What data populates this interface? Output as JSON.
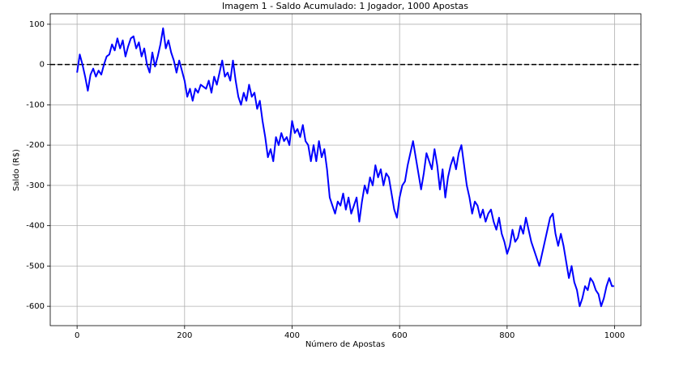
{
  "chart_data": {
    "type": "line",
    "title": "Imagem 1 - Saldo Acumulado: 1 Jogador, 1000 Apostas",
    "x_label": "Número de Apostas",
    "y_label": "Saldo (R$)",
    "x": [
      0,
      5,
      10,
      15,
      20,
      25,
      30,
      35,
      40,
      45,
      50,
      55,
      60,
      65,
      70,
      75,
      80,
      85,
      90,
      95,
      100,
      105,
      110,
      115,
      120,
      125,
      130,
      135,
      140,
      145,
      150,
      155,
      160,
      165,
      170,
      175,
      180,
      185,
      190,
      195,
      200,
      205,
      210,
      215,
      220,
      225,
      230,
      235,
      240,
      245,
      250,
      255,
      260,
      265,
      270,
      275,
      280,
      285,
      290,
      295,
      300,
      305,
      310,
      315,
      320,
      325,
      330,
      335,
      340,
      345,
      350,
      355,
      360,
      365,
      370,
      375,
      380,
      385,
      390,
      395,
      400,
      405,
      410,
      415,
      420,
      425,
      430,
      435,
      440,
      445,
      450,
      455,
      460,
      465,
      470,
      475,
      480,
      485,
      490,
      495,
      500,
      505,
      510,
      515,
      520,
      525,
      530,
      535,
      540,
      545,
      550,
      555,
      560,
      565,
      570,
      575,
      580,
      585,
      590,
      595,
      600,
      605,
      610,
      615,
      620,
      625,
      630,
      635,
      640,
      645,
      650,
      655,
      660,
      665,
      670,
      675,
      680,
      685,
      690,
      695,
      700,
      705,
      710,
      715,
      720,
      725,
      730,
      735,
      740,
      745,
      750,
      755,
      760,
      765,
      770,
      775,
      780,
      785,
      790,
      795,
      800,
      805,
      810,
      815,
      820,
      825,
      830,
      835,
      840,
      845,
      850,
      855,
      860,
      865,
      870,
      875,
      880,
      885,
      890,
      895,
      900,
      905,
      910,
      915,
      920,
      925,
      930,
      935,
      940,
      945,
      950,
      955,
      960,
      965,
      970,
      975,
      980,
      985,
      990,
      995,
      999
    ],
    "series": [
      {
        "color": "#0000ff",
        "values": [
          -20,
          25,
          0,
          -30,
          -65,
          -25,
          -10,
          -30,
          -15,
          -25,
          0,
          20,
          25,
          50,
          35,
          65,
          40,
          60,
          20,
          45,
          65,
          70,
          40,
          55,
          20,
          40,
          0,
          -20,
          30,
          -5,
          20,
          50,
          90,
          40,
          60,
          30,
          10,
          -20,
          10,
          -15,
          -40,
          -80,
          -60,
          -90,
          -60,
          -70,
          -50,
          -55,
          -60,
          -40,
          -70,
          -30,
          -50,
          -20,
          10,
          -30,
          -20,
          -40,
          10,
          -40,
          -80,
          -100,
          -70,
          -90,
          -50,
          -80,
          -70,
          -110,
          -90,
          -140,
          -180,
          -230,
          -210,
          -240,
          -180,
          -200,
          -170,
          -190,
          -180,
          -200,
          -140,
          -170,
          -160,
          -180,
          -150,
          -190,
          -200,
          -240,
          -200,
          -240,
          -190,
          -230,
          -210,
          -260,
          -330,
          -350,
          -370,
          -340,
          -350,
          -320,
          -360,
          -330,
          -370,
          -350,
          -330,
          -390,
          -340,
          -300,
          -320,
          -280,
          -300,
          -250,
          -280,
          -260,
          -300,
          -270,
          -280,
          -320,
          -360,
          -380,
          -330,
          -300,
          -290,
          -250,
          -220,
          -190,
          -230,
          -270,
          -310,
          -270,
          -220,
          -240,
          -260,
          -210,
          -250,
          -310,
          -260,
          -330,
          -280,
          -250,
          -230,
          -260,
          -220,
          -200,
          -250,
          -300,
          -330,
          -370,
          -340,
          -350,
          -380,
          -360,
          -390,
          -370,
          -360,
          -390,
          -410,
          -380,
          -420,
          -440,
          -470,
          -450,
          -410,
          -440,
          -430,
          -400,
          -420,
          -380,
          -410,
          -440,
          -460,
          -480,
          -500,
          -470,
          -440,
          -410,
          -380,
          -370,
          -420,
          -450,
          -420,
          -450,
          -490,
          -530,
          -500,
          -540,
          -560,
          -600,
          -580,
          -550,
          -560,
          -530,
          -540,
          -560,
          -570,
          -600,
          -580,
          -550,
          -530,
          -550,
          -550
        ]
      }
    ],
    "reference_line": 0,
    "xlim": [
      -49.95,
      1048.95
    ],
    "xticks": [
      0,
      200,
      400,
      600,
      800,
      1000
    ],
    "ylim": [
      -648,
      126
    ],
    "yticks": [
      -600,
      -500,
      -400,
      -300,
      -200,
      -100,
      0,
      100
    ],
    "grid": true
  }
}
